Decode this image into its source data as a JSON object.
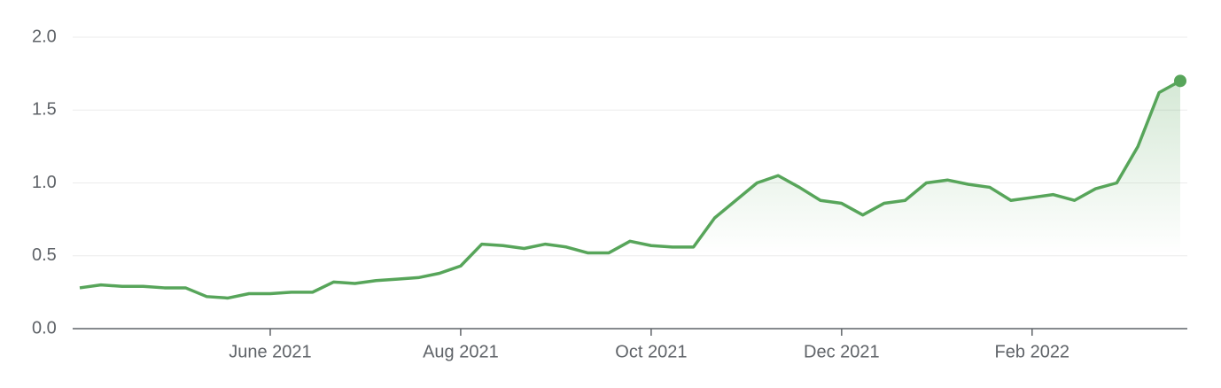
{
  "chart_data": {
    "type": "line",
    "categories": [
      null,
      null,
      null,
      null,
      null,
      null,
      null,
      null,
      null,
      "June 2021",
      null,
      null,
      null,
      null,
      null,
      null,
      null,
      null,
      "Aug 2021",
      null,
      null,
      null,
      null,
      null,
      null,
      null,
      null,
      "Oct 2021",
      null,
      null,
      null,
      null,
      null,
      null,
      null,
      null,
      "Dec 2021",
      null,
      null,
      null,
      null,
      null,
      null,
      null,
      null,
      "Feb 2022",
      null,
      null,
      null,
      null,
      null,
      null,
      null
    ],
    "values": [
      0.28,
      0.3,
      0.29,
      0.29,
      0.28,
      0.28,
      0.22,
      0.21,
      0.24,
      0.24,
      0.25,
      0.25,
      0.32,
      0.31,
      0.33,
      0.34,
      0.35,
      0.38,
      0.43,
      0.58,
      0.57,
      0.55,
      0.58,
      0.56,
      0.52,
      0.52,
      0.6,
      0.57,
      0.56,
      0.56,
      0.76,
      0.88,
      1.0,
      1.05,
      0.97,
      0.88,
      0.86,
      0.78,
      0.86,
      0.88,
      1.0,
      1.02,
      0.99,
      0.97,
      0.88,
      0.9,
      0.92,
      0.88,
      0.96,
      1.0,
      1.25,
      1.62,
      1.7
    ],
    "color": "#57a55a",
    "ylim": [
      0,
      2
    ],
    "yticks": [
      {
        "value": 0,
        "label": "0.0"
      },
      0.5,
      {
        "value": 1,
        "label": "1.0"
      },
      1.5,
      {
        "value": 2,
        "label": "2.0"
      }
    ],
    "grid": true
  }
}
